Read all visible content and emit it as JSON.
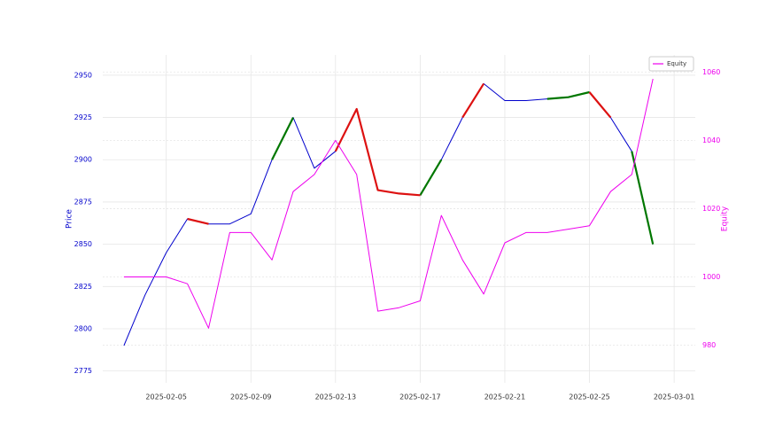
{
  "chart_data": {
    "type": "line",
    "x": [
      "2025-02-03",
      "2025-02-04",
      "2025-02-05",
      "2025-02-06",
      "2025-02-07",
      "2025-02-08",
      "2025-02-09",
      "2025-02-10",
      "2025-02-11",
      "2025-02-12",
      "2025-02-13",
      "2025-02-14",
      "2025-02-15",
      "2025-02-16",
      "2025-02-17",
      "2025-02-18",
      "2025-02-19",
      "2025-02-20",
      "2025-02-21",
      "2025-02-22",
      "2025-02-23",
      "2025-02-24",
      "2025-02-25",
      "2025-02-26",
      "2025-02-27",
      "2025-02-28"
    ],
    "series": [
      {
        "color": "#0000cc",
        "values": [
          2790,
          2820,
          2845,
          2865,
          2862,
          2862,
          2868,
          2900,
          2925,
          2895,
          2905,
          2930,
          2882,
          2880,
          2879,
          2900,
          2925,
          2945,
          2935,
          2935,
          2936,
          2937,
          2940,
          2925,
          2905,
          2850
        ]
      },
      {
        "color": "#007700",
        "values": [
          null,
          null,
          null,
          null,
          null,
          null,
          null,
          2900,
          2925,
          null,
          null,
          null,
          null,
          null,
          2879,
          2900,
          null,
          null,
          null,
          null,
          2936,
          2937,
          2940,
          null,
          2905,
          2850
        ]
      },
      {
        "color": "#dd1111",
        "values": [
          null,
          null,
          null,
          2865,
          2862,
          null,
          null,
          null,
          null,
          null,
          2905,
          2930,
          2882,
          2880,
          2879,
          null,
          2925,
          2945,
          null,
          null,
          null,
          null,
          2940,
          2925,
          null,
          null
        ]
      },
      {
        "name": "Equity",
        "color": "#ee00ee",
        "axis": "y2",
        "values": [
          1000,
          1000,
          1000,
          998,
          985,
          1013,
          1013,
          1005,
          1025,
          1030,
          1040,
          1030,
          990,
          991,
          993,
          1018,
          1005,
          995,
          1010,
          1013,
          1013,
          1014,
          1015,
          1025,
          1030,
          1058
        ]
      }
    ],
    "xlim": [
      "2025-02-02",
      "2025-03-02"
    ],
    "xticks": [
      "2025-02-05",
      "2025-02-09",
      "2025-02-13",
      "2025-02-17",
      "2025-02-21",
      "2025-02-25",
      "2025-03-01"
    ],
    "ylim": [
      2768,
      2962
    ],
    "yticks": [
      2775,
      2800,
      2825,
      2850,
      2875,
      2900,
      2925,
      2950
    ],
    "y2lim": [
      969,
      1065
    ],
    "y2ticks": [
      980,
      1000,
      1020,
      1040,
      1060
    ],
    "ylabel": "Price",
    "y2label": "Equity",
    "grid": true,
    "legend": "upper right"
  }
}
